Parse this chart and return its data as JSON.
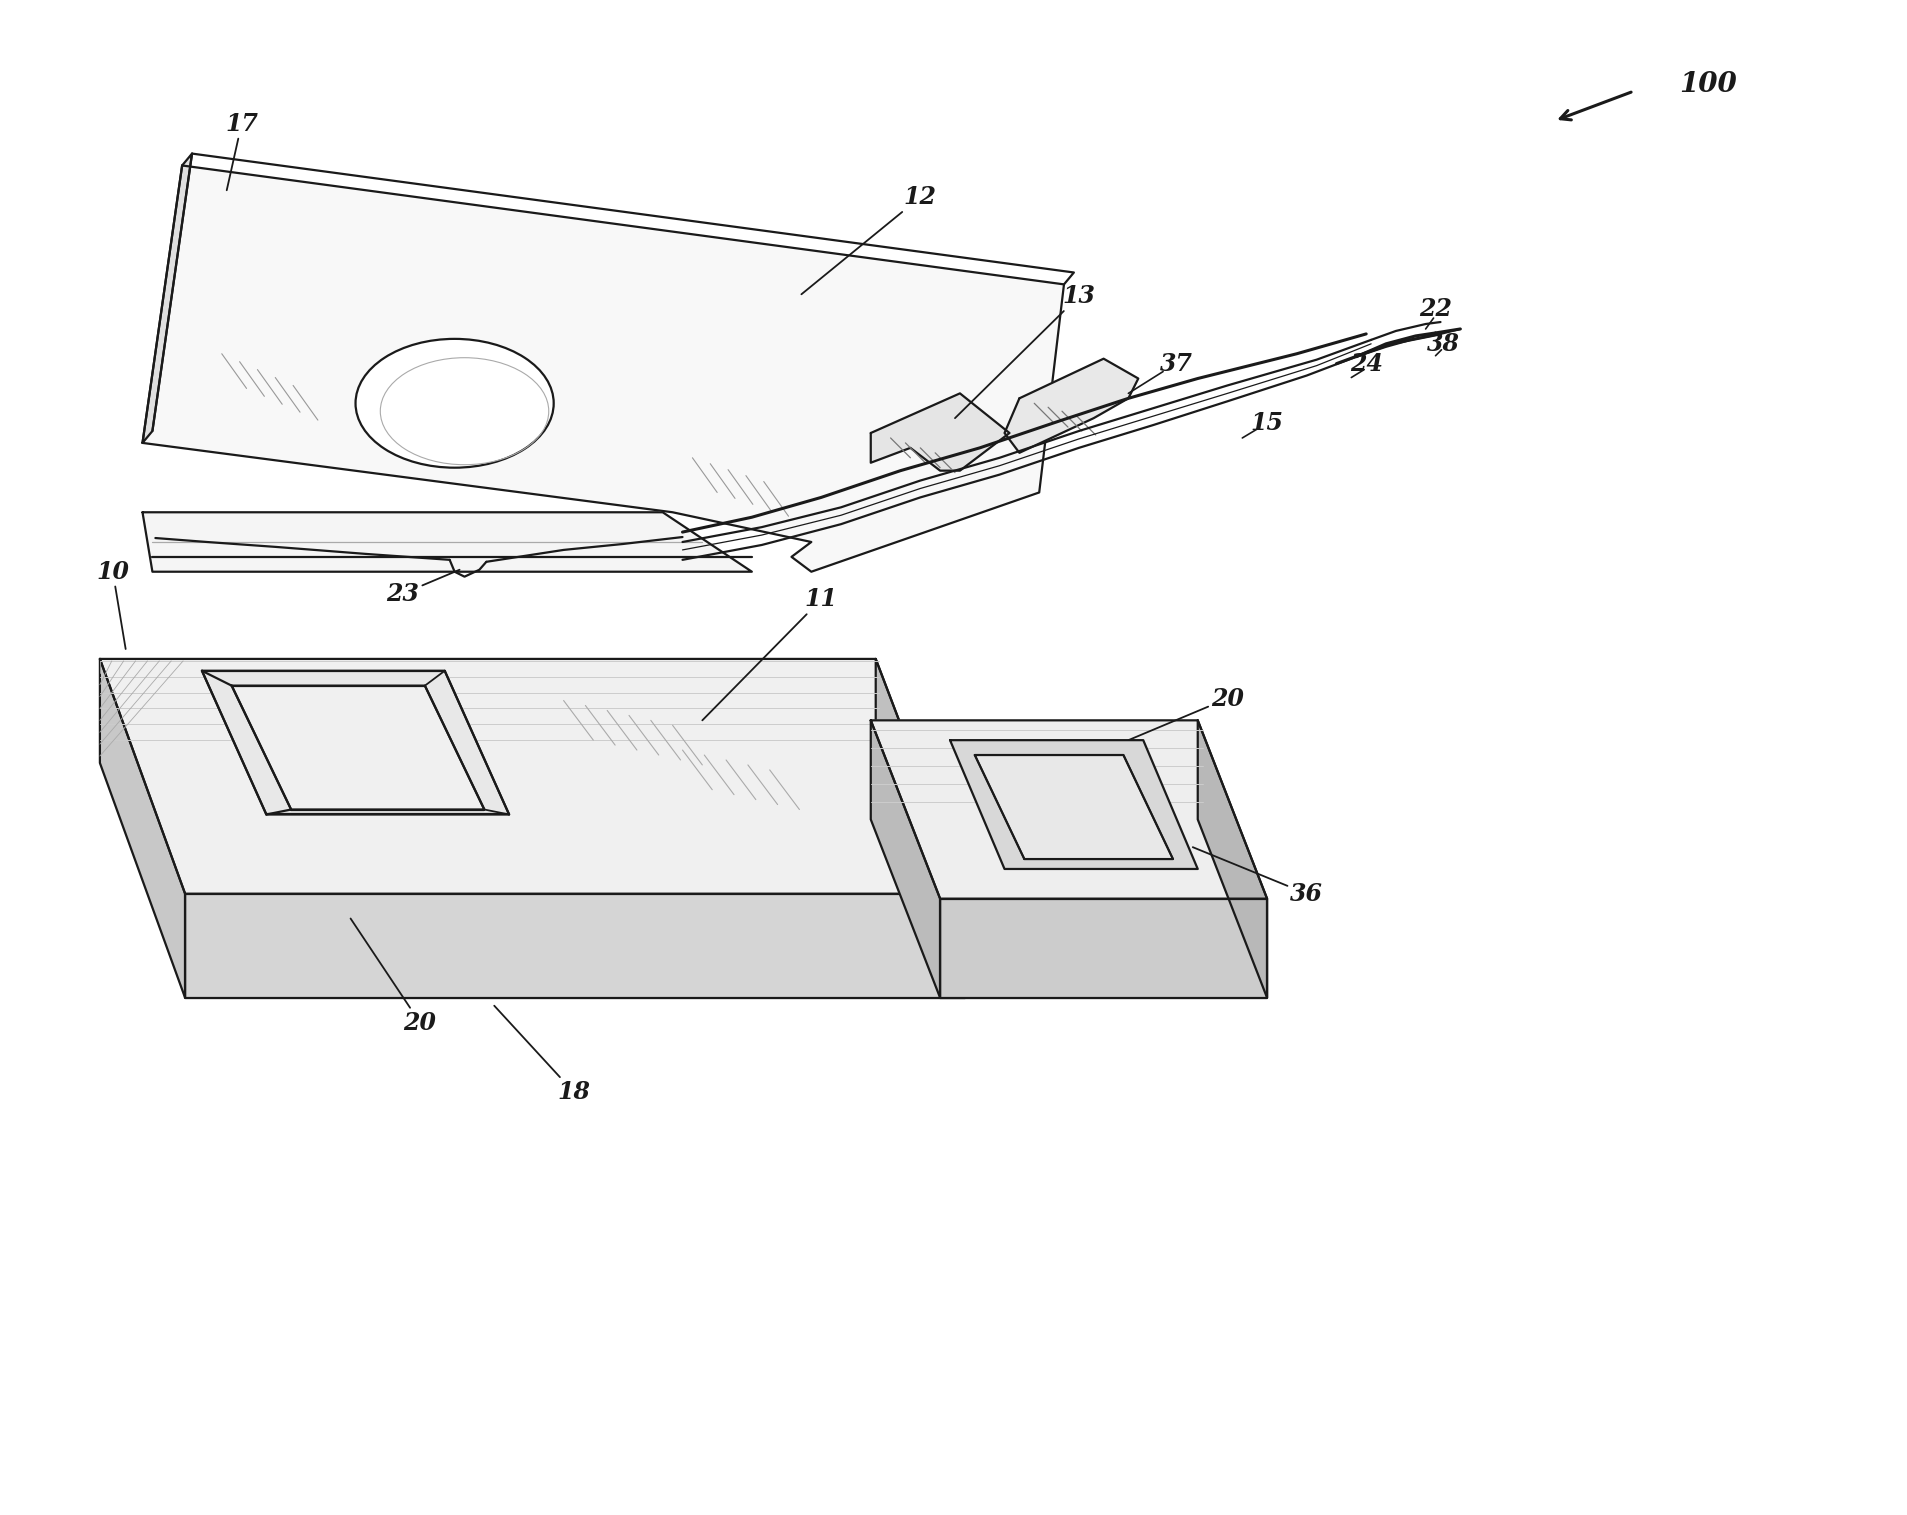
{
  "background_color": "#ffffff",
  "line_color": "#1a1a1a",
  "lw": 1.6,
  "lw_thick": 2.2,
  "lw_thin": 0.9,
  "fig_width": 19.07,
  "fig_height": 15.15,
  "label_fontsize": 17,
  "label_fontsize_large": 20,
  "hatch_color": "#888888",
  "fill_top": "#f8f8f8",
  "fill_mid": "#f2f2f2",
  "fill_base_top": "#f0f0f0",
  "fill_base_front": "#d5d5d5",
  "fill_base_left": "#c8c8c8",
  "fill_small_top": "#eeeeee",
  "fill_small_front": "#cccccc",
  "fill_small_left": "#bbbbbb",
  "fill_cutout": "#e8e8e8",
  "fill_square": "#e0e0e0",
  "fill_lancet_tab": "#e5e5e5"
}
